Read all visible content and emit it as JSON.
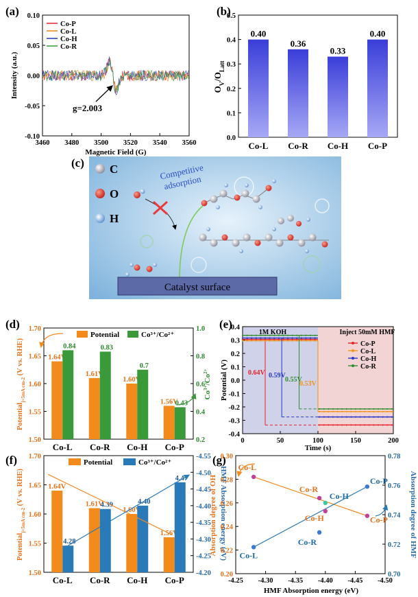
{
  "panels": {
    "a": {
      "tag": "(a)",
      "chart_data": {
        "type": "line",
        "xlabel": "Magnetic Field (G)",
        "ylabel": "Intensity (a.u.)",
        "xlim": [
          3460,
          3560
        ],
        "ylim": [
          -0.1,
          0.1
        ],
        "xticks": [
          "3460",
          "3480",
          "3500",
          "3520",
          "3540",
          "3560"
        ],
        "yticks": [
          "-0.10",
          "-0.05",
          "0.00",
          "0.05",
          "0.10"
        ],
        "series": [
          {
            "name": "Co-P",
            "color": "#e8212a"
          },
          {
            "name": "Co-L",
            "color": "#f0831a"
          },
          {
            "name": "Co-H",
            "color": "#2638c6"
          },
          {
            "name": "Co-R",
            "color": "#2f9c3a"
          }
        ],
        "annotation": "g=2.003",
        "annotation_x": 3508
      }
    },
    "b": {
      "tag": "(b)",
      "chart_data": {
        "type": "bar",
        "ylabel": "Ov/OLatt",
        "ylim": [
          0.0,
          0.5
        ],
        "yticks": [
          "0.0",
          "0.1",
          "0.2",
          "0.3",
          "0.4",
          "0.5"
        ],
        "categories": [
          "Co-L",
          "Co-R",
          "Co-H",
          "Co-P"
        ],
        "values": [
          0.4,
          0.36,
          0.33,
          0.4
        ],
        "value_labels": [
          "0.40",
          "0.36",
          "0.33",
          "0.40"
        ]
      }
    },
    "c": {
      "tag": "(c)",
      "atoms": {
        "c": "C",
        "o": "O",
        "h": "H"
      },
      "arrow_label_line1": "Competitive",
      "arrow_label_line2": "adsorption",
      "surface_label": "Catalyst surface",
      "bg_color": "#9cc8e8"
    },
    "d": {
      "tag": "(d)",
      "chart_data": {
        "type": "bar",
        "categories": [
          "Co-L",
          "Co-R",
          "Co-H",
          "Co-P"
        ],
        "series": [
          {
            "name": "Potential",
            "color": "#f28a1c",
            "values": [
              1.64,
              1.61,
              1.6,
              1.56
            ],
            "labels": [
              "1.64V",
              "1.61V",
              "1.60V",
              "1.56V"
            ]
          },
          {
            "name": "Co3+/Co2+",
            "color": "#3a9a3a",
            "values": [
              0.84,
              0.83,
              0.7,
              0.43
            ],
            "labels": [
              "0.84",
              "0.83",
              "0.7",
              "0.43"
            ]
          }
        ],
        "ylabel_left": "Potentialj=5mA cm-2 (V vs. RHE)",
        "ylabel_right": "Co3+/Co2+",
        "ylim_left": [
          1.5,
          1.7
        ],
        "ylim_right": [
          0.2,
          1.0
        ],
        "yticks_left": [
          "1.50",
          "1.55",
          "1.60",
          "1.65",
          "1.70"
        ],
        "yticks_right": [
          "0.2",
          "0.4",
          "0.6",
          "0.8",
          "1.0"
        ]
      }
    },
    "e": {
      "tag": "(e)",
      "chart_data": {
        "type": "line",
        "xlabel": "Time (s)",
        "ylabel": "Potential (V)",
        "xlim": [
          0,
          200
        ],
        "ylim": [
          -0.4,
          0.4
        ],
        "xticks": [
          "0",
          "50",
          "100",
          "150",
          "200"
        ],
        "yticks": [
          "-0.4",
          "-0.3",
          "-0.2",
          "-0.1",
          "0.0",
          "0.1",
          "0.2",
          "0.3",
          "0.4"
        ],
        "region_left": "1M KOH",
        "region_right": "Inject 50mM HMF",
        "series": [
          {
            "name": "Co-P",
            "color": "#e8212a",
            "high": 0.305,
            "low": -0.335,
            "switch": 30,
            "drop_label": "0.64V"
          },
          {
            "name": "Co-L",
            "color": "#f0931a",
            "high": 0.295,
            "low": -0.235,
            "switch": 100,
            "drop_label": "0.53V"
          },
          {
            "name": "Co-H",
            "color": "#2638c6",
            "high": 0.315,
            "low": -0.275,
            "switch": 52,
            "drop_label": "0.59V"
          },
          {
            "name": "Co-R",
            "color": "#2f8c2f",
            "high": 0.335,
            "low": -0.215,
            "switch": 75,
            "drop_label": "0.55V"
          }
        ]
      }
    },
    "f": {
      "tag": "(f)",
      "chart_data": {
        "type": "bar",
        "categories": [
          "Co-L",
          "Co-R",
          "Co-H",
          "Co-P"
        ],
        "series": [
          {
            "name": "Potential",
            "color": "#f28a1c",
            "values": [
              1.64,
              1.61,
              1.6,
              1.56
            ],
            "labels": [
              "1.64V",
              "1.61V",
              "1.60V",
              "1.56V"
            ]
          },
          {
            "name": "Co3+/Co2+",
            "color": "#2a7ab8",
            "values": [
              4.28,
              4.39,
              4.4,
              4.47
            ],
            "labels": [
              "4.28",
              "4.39",
              "4.40",
              "4.47"
            ]
          }
        ],
        "ylabel_left": "Potentialj=5mA cm-2 (V vs. RHE)",
        "ylabel_right": "HMF Absorption energy (eV)",
        "ylim_left": [
          1.5,
          1.7
        ],
        "ylim_right": [
          -4.2,
          -4.55
        ],
        "yticks_left": [
          "1.50",
          "1.55",
          "1.60",
          "1.65",
          "1.70"
        ],
        "yticks_right": [
          "-4.20",
          "-4.25",
          "-4.30",
          "-4.35",
          "-4.40",
          "-4.45",
          "-4.50",
          "-4.55"
        ]
      }
    },
    "g": {
      "tag": "(g)",
      "chart_data": {
        "type": "scatter",
        "xlabel": "HMF Absorption energy (eV)",
        "ylabel_left": "Absorption degree of OH-",
        "ylabel_right": "Absorption degree of HMF",
        "xlim": [
          -4.25,
          -4.5
        ],
        "ylim_left": [
          0.2,
          0.3
        ],
        "ylim_right": [
          0.7,
          0.78
        ],
        "xticks": [
          "-4.25",
          "-4.30",
          "-4.35",
          "-4.40",
          "-4.45",
          "-4.50"
        ],
        "yticks_left": [
          "0.20",
          "0.22",
          "0.24",
          "0.26",
          "0.28",
          "0.30"
        ],
        "yticks_right": [
          "0.70",
          "0.72",
          "0.74",
          "0.76",
          "0.78"
        ],
        "series": [
          {
            "name": "OH",
            "color": "#f28a1c",
            "points": [
              {
                "label": "Co-L",
                "x": -4.28,
                "y": 0.282
              },
              {
                "label": "Co-R",
                "x": -4.39,
                "y": 0.264
              },
              {
                "label": "Co-H",
                "x": -4.4,
                "y": 0.253
              },
              {
                "label": "Co-P",
                "x": -4.47,
                "y": 0.249
              }
            ]
          },
          {
            "name": "HMF",
            "color": "#2a7ab8",
            "points": [
              {
                "label": "Co-L",
                "x": -4.28,
                "y": 0.718
              },
              {
                "label": "Co-R",
                "x": -4.39,
                "y": 0.728
              },
              {
                "label": "Co-H",
                "x": -4.4,
                "y": 0.748
              },
              {
                "label": "Co-P",
                "x": -4.47,
                "y": 0.759
              }
            ]
          }
        ]
      }
    }
  }
}
